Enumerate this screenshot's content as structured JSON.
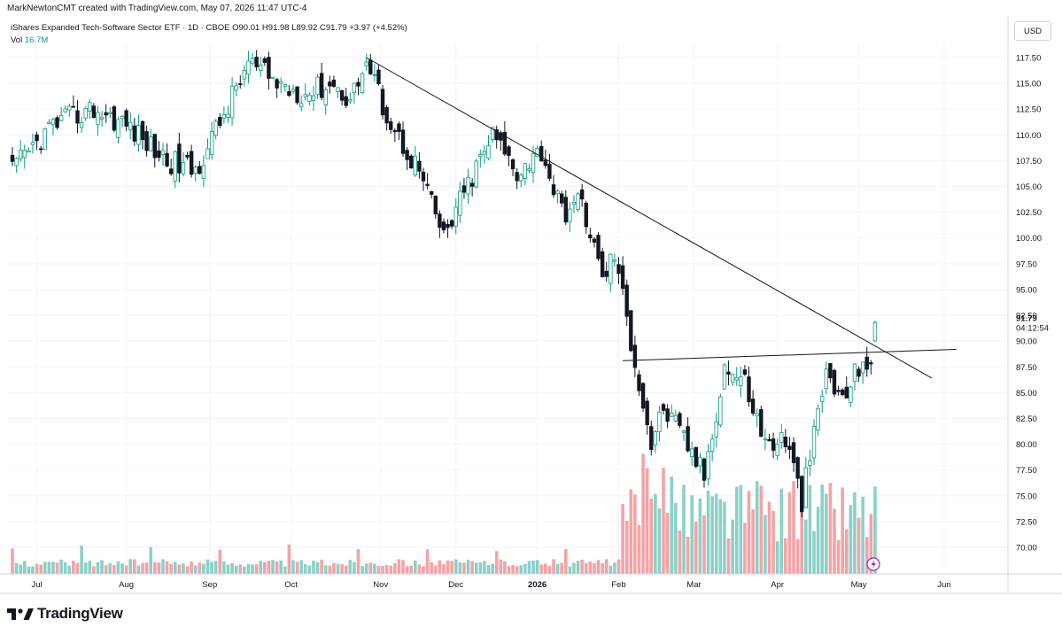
{
  "header": {
    "credit": "MarkNewtonCMT created with TradingView.com, May 07, 2026 11:47 UTC-4"
  },
  "legend": {
    "symbol": "iShares Expanded Tech-Software Sector ETF · 1D · CBOE",
    "o_label": "O",
    "o_value": "90.01",
    "h_label": "H",
    "h_value": "91.98",
    "l_label": "L",
    "l_value": "89.92",
    "c_label": "C",
    "c_value": "91.79",
    "change": "+3.97 (+4.52%)",
    "vol_label": "Vol",
    "vol_value": "16.7M"
  },
  "currency": "USD",
  "price_tag": {
    "price": "91.79",
    "countdown": "04:12:54"
  },
  "brand": {
    "name": "TradingView"
  },
  "colors": {
    "up": "#089981",
    "down": "#131722",
    "vol_up": "#8ad1c7",
    "vol_down": "#f4a3a6",
    "line": "#131722",
    "grid": "#f0f3fa"
  },
  "chart_data": {
    "type": "candlestick",
    "ylim": [
      67.5,
      120
    ],
    "y_ticks": [
      "70.00",
      "72.50",
      "75.00",
      "77.50",
      "80.00",
      "82.50",
      "85.00",
      "87.50",
      "90.00",
      "92.50",
      "95.00",
      "97.50",
      "100.00",
      "102.50",
      "105.00",
      "107.50",
      "110.00",
      "112.50",
      "115.00",
      "117.50"
    ],
    "x_ticks": [
      "Jul",
      "Aug",
      "Sep",
      "Oct",
      "Nov",
      "Dec",
      "2026",
      "Feb",
      "Mar",
      "Apr",
      "May",
      "Jun"
    ],
    "price_anchors": [
      {
        "bar": 0,
        "price": 106.5
      },
      {
        "bar": 10,
        "price": 111.0
      },
      {
        "bar": 20,
        "price": 112.5
      },
      {
        "bar": 28,
        "price": 111.0
      },
      {
        "bar": 38,
        "price": 107.5
      },
      {
        "bar": 45,
        "price": 106.5
      },
      {
        "bar": 52,
        "price": 112.0
      },
      {
        "bar": 58,
        "price": 117.0
      },
      {
        "bar": 65,
        "price": 115.0
      },
      {
        "bar": 72,
        "price": 114.0
      },
      {
        "bar": 78,
        "price": 115.0
      },
      {
        "bar": 83,
        "price": 113.5
      },
      {
        "bar": 87,
        "price": 117.0
      },
      {
        "bar": 93,
        "price": 111.0
      },
      {
        "bar": 100,
        "price": 106.5
      },
      {
        "bar": 106,
        "price": 100.0
      },
      {
        "bar": 110,
        "price": 103.5
      },
      {
        "bar": 118,
        "price": 110.0
      },
      {
        "bar": 124,
        "price": 106.5
      },
      {
        "bar": 130,
        "price": 108.5
      },
      {
        "bar": 135,
        "price": 102.5
      },
      {
        "bar": 140,
        "price": 103.5
      },
      {
        "bar": 145,
        "price": 96.0
      },
      {
        "bar": 148,
        "price": 98.5
      },
      {
        "bar": 152,
        "price": 90.0
      },
      {
        "bar": 157,
        "price": 80.0
      },
      {
        "bar": 160,
        "price": 83.5
      },
      {
        "bar": 165,
        "price": 80.5
      },
      {
        "bar": 170,
        "price": 77.0
      },
      {
        "bar": 175,
        "price": 87.5
      },
      {
        "bar": 180,
        "price": 86.0
      },
      {
        "bar": 185,
        "price": 80.0
      },
      {
        "bar": 190,
        "price": 80.5
      },
      {
        "bar": 194,
        "price": 74.5
      },
      {
        "bar": 200,
        "price": 87.0
      },
      {
        "bar": 204,
        "price": 84.0
      },
      {
        "bar": 209,
        "price": 88.5
      },
      {
        "bar": 211,
        "price": 86.8
      }
    ],
    "last_bar": {
      "open": 90.01,
      "high": 91.98,
      "low": 89.92,
      "close": 91.79
    },
    "trendlines": [
      {
        "from": {
          "date": "Oct 27",
          "price": 117.5
        },
        "to": {
          "date": "May 29",
          "price": 86.4
        }
      },
      {
        "from": {
          "date": "Feb 01",
          "price": 88.1
        },
        "to": {
          "date": "May 31",
          "price": 89.2
        }
      }
    ]
  }
}
